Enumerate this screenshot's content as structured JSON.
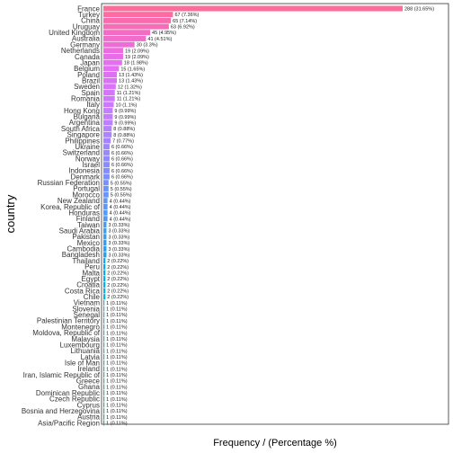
{
  "chart_data": {
    "type": "bar",
    "orientation": "horizontal",
    "xlabel": "Frequency / (Percentage %)",
    "ylabel": "country",
    "xlim": [
      0,
      288
    ],
    "grid": false,
    "legend": "none",
    "bar_colors": [
      "#ff6b9a",
      "#e86cf0",
      "#c77cff",
      "#8b8bff",
      "#4f9bff",
      "#00a9ff",
      "#00bcd8",
      "#00c1a5",
      "#00bf7d"
    ],
    "categories": [
      "France",
      "Turkey",
      "China",
      "Uruguay",
      "United Kingdom",
      "Australia",
      "Germany",
      "Netherlands",
      "Canada",
      "Japan",
      "Belgium",
      "Poland",
      "Brazil",
      "Sweden",
      "Spain",
      "Romania",
      "Italy",
      "Hong Kong",
      "Bulgaria",
      "Argentina",
      "South Africa",
      "Singapore",
      "Philippines",
      "Ukraine",
      "Switzerland",
      "Norway",
      "Israel",
      "Indonesia",
      "Denmark",
      "Russian Federation",
      "Portugal",
      "Morocco",
      "New Zealand",
      "Korea, Republic of",
      "Honduras",
      "Finland",
      "Taiwan",
      "Saudi Arabia",
      "Pakistan",
      "Mexico",
      "Cambodia",
      "Bangladesh",
      "Thailand",
      "Peru",
      "Malta",
      "Egypt",
      "Croatia",
      "Costa Rica",
      "Chile",
      "Vietnam",
      "Slovenia",
      "Senegal",
      "Palestinian Territory",
      "Montenegro",
      "Moldova, Republic of",
      "Malaysia",
      "Luxembourg",
      "Lithuania",
      "Latvia",
      "Isle of Man",
      "Ireland",
      "Iran, Islamic Republic of",
      "Greece",
      "Ghana",
      "Dominican Republic",
      "Czech Republic",
      "Cyprus",
      "Bosnia and Herzegovina",
      "Austria",
      "Asia/Pacific Region"
    ],
    "values": [
      288,
      67,
      65,
      63,
      45,
      41,
      30,
      19,
      19,
      18,
      15,
      13,
      13,
      12,
      11,
      11,
      10,
      9,
      9,
      9,
      8,
      8,
      7,
      6,
      6,
      6,
      6,
      6,
      6,
      5,
      5,
      5,
      4,
      4,
      4,
      4,
      3,
      3,
      3,
      3,
      3,
      3,
      2,
      2,
      2,
      2,
      2,
      2,
      2,
      1,
      1,
      1,
      1,
      1,
      1,
      1,
      1,
      1,
      1,
      1,
      1,
      1,
      1,
      1,
      1,
      1,
      1,
      1,
      1,
      1
    ],
    "labels": [
      "288 (31.65%)",
      "67 (7.36%)",
      "65 (7.14%)",
      "63 (6.92%)",
      "45 (4.95%)",
      "41 (4.51%)",
      "30 (3.3%)",
      "19 (2.09%)",
      "19 (2.09%)",
      "18 (1.98%)",
      "15 (1.65%)",
      "13 (1.43%)",
      "13 (1.43%)",
      "12 (1.32%)",
      "11 (1.21%)",
      "11 (1.21%)",
      "10 (1.1%)",
      "9 (0.99%)",
      "9 (0.99%)",
      "9 (0.99%)",
      "8 (0.88%)",
      "8 (0.88%)",
      "7 (0.77%)",
      "6 (0.66%)",
      "6 (0.66%)",
      "6 (0.66%)",
      "6 (0.66%)",
      "6 (0.66%)",
      "6 (0.66%)",
      "5 (0.55%)",
      "5 (0.55%)",
      "5 (0.55%)",
      "4 (0.44%)",
      "4 (0.44%)",
      "4 (0.44%)",
      "4 (0.44%)",
      "3 (0.33%)",
      "3 (0.33%)",
      "3 (0.33%)",
      "3 (0.33%)",
      "3 (0.33%)",
      "3 (0.33%)",
      "2 (0.22%)",
      "2 (0.22%)",
      "2 (0.22%)",
      "2 (0.22%)",
      "2 (0.22%)",
      "2 (0.22%)",
      "2 (0.22%)",
      "1 (0.11%)",
      "1 (0.11%)",
      "1 (0.11%)",
      "1 (0.11%)",
      "1 (0.11%)",
      "1 (0.11%)",
      "1 (0.11%)",
      "1 (0.11%)",
      "1 (0.11%)",
      "1 (0.11%)",
      "1 (0.11%)",
      "1 (0.11%)",
      "1 (0.11%)",
      "1 (0.11%)",
      "1 (0.11%)",
      "1 (0.11%)",
      "1 (0.11%)",
      "1 (0.11%)",
      "1 (0.11%)",
      "1 (0.11%)",
      "1 (0.11%)"
    ]
  }
}
